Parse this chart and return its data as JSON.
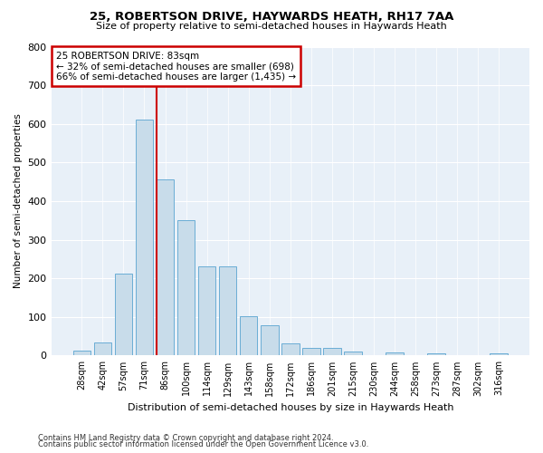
{
  "title1": "25, ROBERTSON DRIVE, HAYWARDS HEATH, RH17 7AA",
  "title2": "Size of property relative to semi-detached houses in Haywards Heath",
  "xlabel": "Distribution of semi-detached houses by size in Haywards Heath",
  "ylabel": "Number of semi-detached properties",
  "footer1": "Contains HM Land Registry data © Crown copyright and database right 2024.",
  "footer2": "Contains public sector information licensed under the Open Government Licence v3.0.",
  "categories": [
    "28sqm",
    "42sqm",
    "57sqm",
    "71sqm",
    "86sqm",
    "100sqm",
    "114sqm",
    "129sqm",
    "143sqm",
    "158sqm",
    "172sqm",
    "186sqm",
    "201sqm",
    "215sqm",
    "230sqm",
    "244sqm",
    "258sqm",
    "273sqm",
    "287sqm",
    "302sqm",
    "316sqm"
  ],
  "values": [
    12,
    35,
    213,
    610,
    457,
    350,
    230,
    230,
    103,
    78,
    32,
    20,
    20,
    10,
    0,
    8,
    0,
    5,
    0,
    0,
    5
  ],
  "bar_color": "#c8dcea",
  "bar_edge_color": "#6aadd5",
  "vline_x_index": 4,
  "vline_color": "#cc0000",
  "annotation_title": "25 ROBERTSON DRIVE: 83sqm",
  "annotation_line1": "← 32% of semi-detached houses are smaller (698)",
  "annotation_line2": "66% of semi-detached houses are larger (1,435) →",
  "annotation_box_color": "#ffffff",
  "annotation_box_edge": "#cc0000",
  "ylim": [
    0,
    800
  ],
  "yticks": [
    0,
    100,
    200,
    300,
    400,
    500,
    600,
    700,
    800
  ],
  "background_color": "#ffffff",
  "plot_bg_color": "#e8f0f8"
}
